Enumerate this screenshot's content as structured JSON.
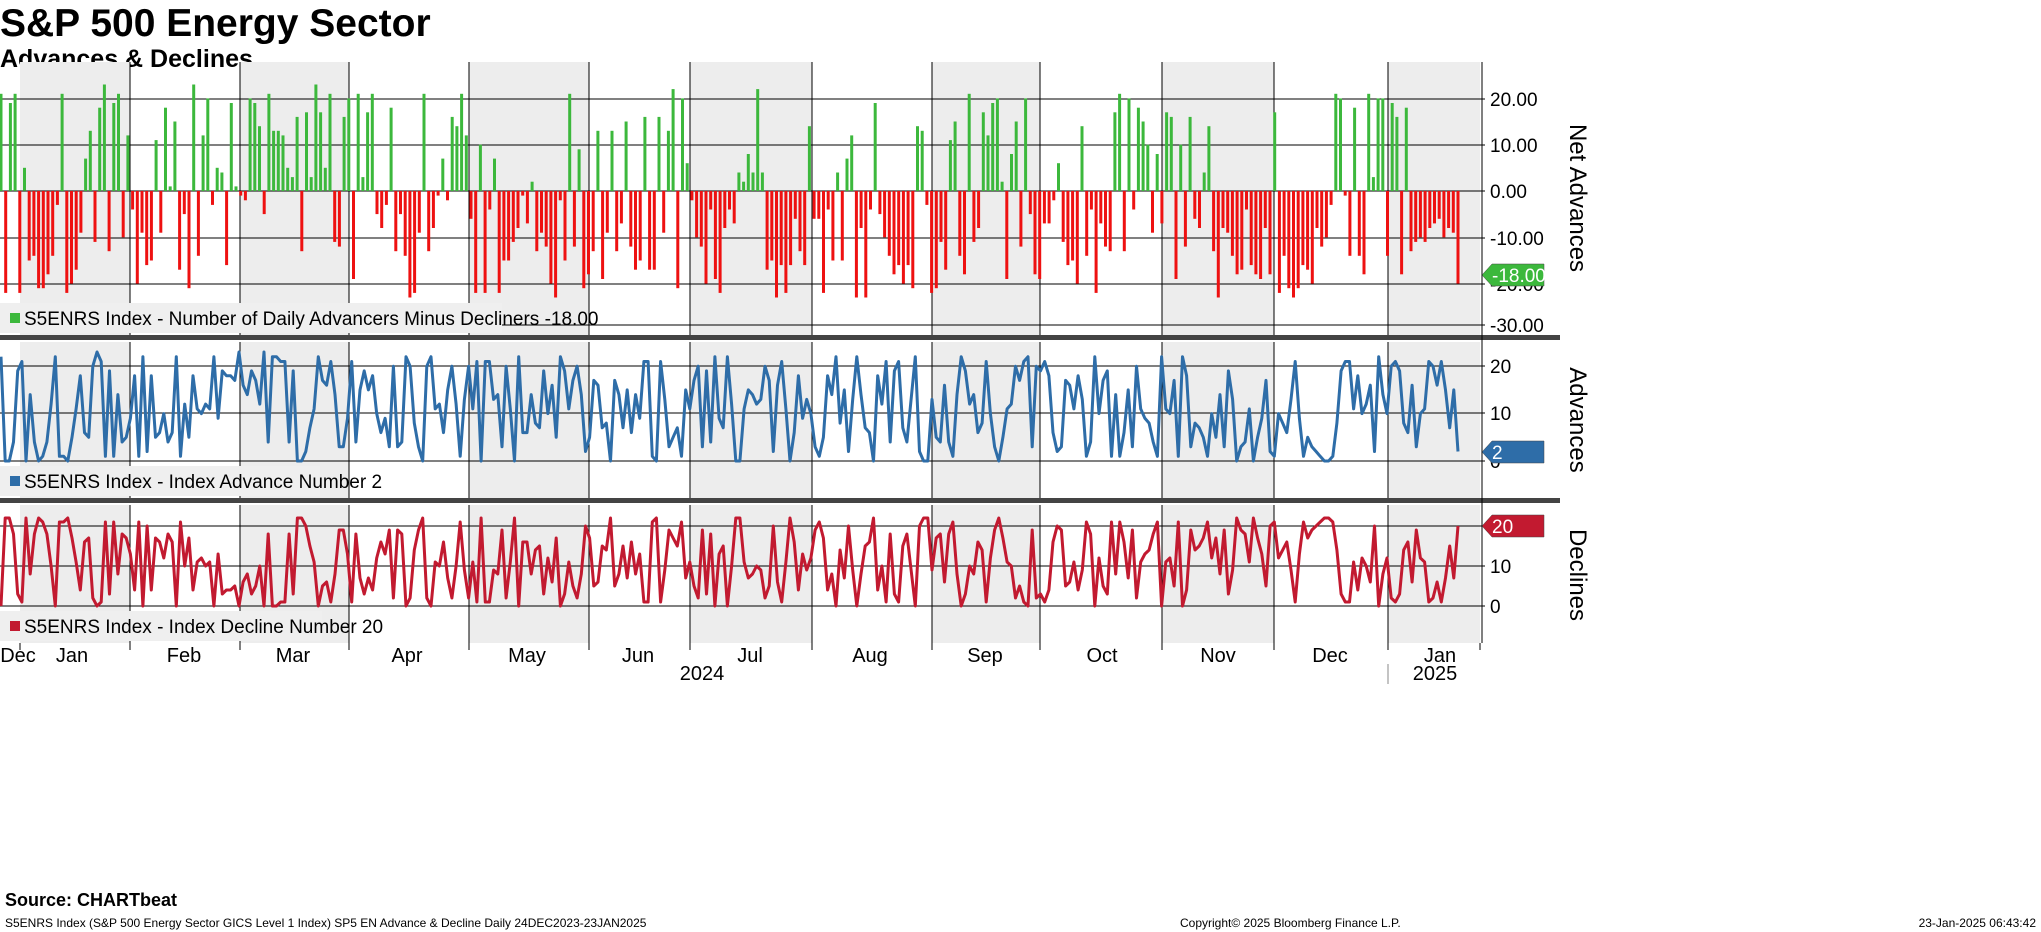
{
  "title": "S&P 500 Energy Sector",
  "subtitle": "Advances & Declines",
  "source": "Source: CHARTbeat",
  "footer": {
    "description": "S5ENRS Index (S&P 500 Energy Sector GICS Level 1 Index) SP5 EN Advance & Decline  Daily 24DEC2023-23JAN2025",
    "copyright": "Copyright© 2025 Bloomberg Finance L.P.",
    "timestamp": "23-Jan-2025 06:43:42"
  },
  "x_axis": {
    "months": [
      "Dec",
      "Jan",
      "Feb",
      "Mar",
      "Apr",
      "May",
      "Jun",
      "Jul",
      "Aug",
      "Sep",
      "Oct",
      "Nov",
      "Dec",
      "Jan"
    ],
    "years": [
      "2024",
      "2025"
    ]
  },
  "colors": {
    "positive": "#3cb83c",
    "negative": "#ee1111",
    "advances": "#2e6da8",
    "declines": "#c21a30",
    "grid": "#000000"
  },
  "chart_data": [
    {
      "type": "bar",
      "title": "Net Advances",
      "ylabel": "Net Advances",
      "legend": "S5ENRS Index - Number of Daily Advancers Minus Decliners -18.00",
      "last_value_label": "-18.00",
      "ylim": [
        -30,
        28
      ],
      "ticks": [
        "20.00",
        "10.00",
        "0.00",
        "-10.00",
        "-20.00",
        "-30.00"
      ],
      "values": [
        21,
        -22,
        19,
        21,
        -22,
        5,
        -15,
        -14,
        -21,
        -21,
        -18,
        -14,
        -3,
        21,
        -22,
        -20,
        -17,
        -9,
        7,
        13,
        -11,
        18,
        23,
        -13,
        19,
        21,
        -10,
        12,
        -4,
        -20,
        -9,
        -16,
        -15,
        11,
        -9,
        18,
        1,
        15,
        -17,
        -5,
        -21,
        23,
        -14,
        12,
        20,
        -3,
        5,
        4,
        -16,
        19,
        1,
        -1,
        -2,
        20,
        19,
        14,
        -5,
        21,
        13,
        13,
        12,
        5,
        3,
        16,
        -13,
        17,
        3,
        23,
        17,
        5,
        21,
        -11,
        -12,
        16,
        20,
        -19,
        21,
        3,
        17,
        21,
        -5,
        -8,
        -3,
        18,
        -13,
        -5,
        -14,
        -23,
        -22,
        -9,
        21,
        -13,
        -8,
        -1,
        7,
        -2,
        16,
        14,
        21,
        12,
        -6,
        -22,
        10,
        -22,
        -4,
        7,
        -22,
        -15,
        -15,
        -11,
        -8,
        -1,
        -7,
        2,
        -13,
        -9,
        -12,
        -20,
        -23,
        -2,
        -15,
        21,
        -12,
        9,
        -21,
        -18,
        -13,
        13,
        -19,
        -9,
        13,
        -13,
        -7,
        15,
        -12,
        -17,
        -15,
        16,
        -17,
        -17,
        16,
        -9,
        13,
        22,
        -21,
        20,
        6,
        -2,
        -10,
        -12,
        -20,
        -4,
        -19,
        -22,
        -8,
        -4,
        -7,
        4,
        2,
        8,
        4,
        22,
        4,
        -17,
        -15,
        -23,
        -16,
        -22,
        -16,
        -6,
        -13,
        -16,
        14,
        -6,
        -6,
        -22,
        -4,
        -15,
        4,
        -15,
        7,
        12,
        -23,
        -8,
        -23,
        -4,
        19,
        -5,
        -10,
        -14,
        -18,
        -16,
        -20,
        -16,
        -21,
        14,
        13,
        -3,
        -22,
        -21,
        -11,
        -17,
        11,
        15,
        -14,
        -18,
        21,
        -11,
        -8,
        17,
        12,
        19,
        20,
        2,
        -19,
        8,
        15,
        -12,
        20,
        -5,
        -18,
        -19,
        -7,
        -7,
        -2,
        6,
        -11,
        -16,
        -15,
        -20,
        14,
        -14,
        -4,
        -22,
        -7,
        -12,
        -13,
        17,
        21,
        -13,
        20,
        -4,
        18,
        15,
        10,
        -9,
        8,
        -7,
        17,
        16,
        -19,
        10,
        -12,
        16,
        -6,
        -8,
        4,
        14,
        -13,
        -23,
        -8,
        -9,
        -14,
        -18,
        -17,
        -4,
        -16,
        -18,
        -19,
        -8,
        -18,
        17,
        -22,
        -14,
        -21,
        -23,
        -21,
        -16,
        -17,
        -20,
        -8,
        -12,
        -10,
        -3,
        21,
        20,
        -1,
        -14,
        18,
        -14,
        -18,
        21,
        3,
        20,
        20,
        -14,
        19,
        16,
        -18,
        18,
        -13,
        -11,
        -10,
        -11,
        -8,
        -7,
        -6,
        -10,
        -8,
        -9,
        -20
      ],
      "last_value": -18
    },
    {
      "type": "line",
      "title": "Advances",
      "ylabel": "Advances",
      "legend": "S5ENRS Index - Index Advance Number 2",
      "last_value_label": "2",
      "ylim": [
        -8,
        25
      ],
      "ticks": [
        "20",
        "10",
        "0"
      ],
      "values": [
        22,
        0,
        0,
        4,
        19,
        21,
        0,
        14,
        4,
        0,
        1,
        4,
        12,
        22,
        1,
        1,
        0,
        5,
        11,
        18,
        6,
        5,
        20,
        23,
        21,
        1,
        19,
        1,
        14,
        4,
        5,
        9,
        18,
        1,
        22,
        2,
        18,
        5,
        6,
        10,
        4,
        6,
        22,
        1,
        12,
        5,
        18,
        11,
        10,
        12,
        11,
        22,
        9,
        19,
        18,
        18,
        17,
        23,
        16,
        14,
        19,
        17,
        12,
        23,
        4,
        22,
        22,
        21,
        21,
        4,
        19,
        0,
        0,
        2,
        7,
        11,
        22,
        17,
        16,
        21,
        14,
        3,
        3,
        9,
        21,
        4,
        15,
        19,
        15,
        18,
        10,
        6,
        9,
        3,
        20,
        3,
        4,
        22,
        20,
        8,
        3,
        0,
        20,
        22,
        11,
        12,
        6,
        15,
        20,
        12,
        1,
        13,
        20,
        11,
        21,
        0,
        21,
        21,
        13,
        14,
        3,
        20,
        11,
        0,
        22,
        6,
        6,
        14,
        8,
        7,
        19,
        10,
        16,
        5,
        22,
        19,
        11,
        17,
        20,
        14,
        2,
        5,
        17,
        16,
        7,
        8,
        0,
        17,
        14,
        7,
        15,
        6,
        14,
        9,
        21,
        21,
        1,
        0,
        21,
        13,
        3,
        5,
        7,
        1,
        15,
        11,
        17,
        20,
        3,
        19,
        4,
        22,
        9,
        7,
        22,
        12,
        0,
        0,
        11,
        15,
        14,
        12,
        13,
        20,
        17,
        2,
        16,
        21,
        11,
        0,
        6,
        18,
        9,
        13,
        10,
        3,
        1,
        5,
        18,
        14,
        22,
        8,
        15,
        2,
        13,
        22,
        14,
        7,
        6,
        0,
        18,
        12,
        21,
        4,
        19,
        21,
        7,
        4,
        13,
        22,
        2,
        0,
        0,
        13,
        5,
        4,
        16,
        4,
        1,
        14,
        22,
        19,
        12,
        14,
        6,
        8,
        21,
        10,
        3,
        0,
        5,
        11,
        12,
        20,
        17,
        21,
        22,
        3,
        20,
        19,
        21,
        18,
        6,
        2,
        3,
        17,
        16,
        11,
        18,
        13,
        1,
        4,
        22,
        10,
        17,
        19,
        1,
        14,
        1,
        6,
        15,
        3,
        20,
        11,
        9,
        8,
        4,
        1,
        22,
        11,
        10,
        17,
        1,
        22,
        18,
        3,
        8,
        7,
        5,
        1,
        10,
        5,
        14,
        3,
        19,
        13,
        0,
        3,
        4,
        11,
        0,
        5,
        9,
        17,
        2,
        1,
        10,
        8,
        6,
        13,
        21,
        9,
        1,
        5,
        3,
        2,
        1,
        0,
        0,
        1,
        8,
        19,
        21,
        21,
        11,
        18,
        10,
        12,
        16,
        2,
        22,
        14,
        10,
        20,
        21,
        19,
        8,
        6,
        16,
        3,
        10,
        11,
        21,
        20,
        16,
        21,
        15,
        7,
        15,
        2
      ]
    },
    {
      "type": "line",
      "title": "Declines",
      "ylabel": "Declines",
      "legend": "S5ENRS Index - Index Decline Number 20",
      "last_value_label": "20",
      "ylim": [
        -8,
        26
      ],
      "ticks": [
        "20",
        "10",
        "0"
      ],
      "values": [
        0,
        22,
        22,
        18,
        3,
        1,
        22,
        8,
        18,
        22,
        21,
        18,
        10,
        0,
        21,
        21,
        22,
        17,
        11,
        4,
        16,
        17,
        2,
        0,
        1,
        21,
        3,
        21,
        8,
        18,
        17,
        13,
        4,
        21,
        0,
        20,
        4,
        17,
        16,
        12,
        18,
        16,
        0,
        21,
        10,
        17,
        4,
        11,
        12,
        10,
        11,
        0,
        13,
        3,
        4,
        4,
        5,
        0,
        6,
        8,
        3,
        5,
        10,
        0,
        18,
        0,
        0,
        1,
        1,
        18,
        3,
        22,
        22,
        20,
        15,
        11,
        0,
        5,
        6,
        1,
        8,
        19,
        19,
        13,
        1,
        18,
        7,
        3,
        7,
        4,
        12,
        16,
        13,
        19,
        2,
        19,
        18,
        0,
        2,
        14,
        19,
        22,
        2,
        0,
        11,
        10,
        16,
        7,
        2,
        10,
        21,
        9,
        2,
        11,
        1,
        22,
        1,
        1,
        9,
        8,
        19,
        2,
        11,
        22,
        0,
        16,
        16,
        8,
        14,
        15,
        3,
        12,
        6,
        17,
        0,
        3,
        11,
        5,
        2,
        8,
        20,
        17,
        5,
        6,
        15,
        14,
        22,
        5,
        8,
        15,
        7,
        16,
        8,
        13,
        1,
        1,
        21,
        22,
        1,
        9,
        19,
        17,
        15,
        21,
        7,
        11,
        5,
        2,
        19,
        3,
        18,
        0,
        13,
        15,
        0,
        10,
        22,
        22,
        11,
        7,
        8,
        10,
        9,
        2,
        5,
        20,
        6,
        1,
        11,
        22,
        16,
        4,
        13,
        9,
        12,
        19,
        21,
        17,
        4,
        8,
        0,
        14,
        7,
        20,
        9,
        0,
        8,
        15,
        16,
        22,
        4,
        10,
        1,
        18,
        3,
        1,
        15,
        18,
        9,
        0,
        20,
        22,
        22,
        9,
        17,
        18,
        6,
        18,
        21,
        8,
        0,
        3,
        10,
        8,
        16,
        14,
        1,
        12,
        19,
        22,
        17,
        11,
        10,
        2,
        5,
        1,
        0,
        19,
        2,
        3,
        1,
        4,
        16,
        20,
        19,
        5,
        6,
        11,
        4,
        9,
        21,
        18,
        0,
        12,
        5,
        3,
        21,
        8,
        21,
        16,
        7,
        19,
        2,
        11,
        13,
        14,
        18,
        21,
        0,
        11,
        12,
        5,
        21,
        0,
        4,
        19,
        14,
        15,
        17,
        21,
        12,
        17,
        8,
        19,
        3,
        9,
        22,
        19,
        18,
        11,
        22,
        17,
        13,
        5,
        20,
        21,
        12,
        14,
        16,
        9,
        1,
        13,
        21,
        17,
        19,
        20,
        21,
        22,
        22,
        21,
        14,
        3,
        1,
        1,
        11,
        4,
        12,
        10,
        6,
        20,
        0,
        8,
        12,
        2,
        1,
        3,
        14,
        16,
        6,
        19,
        12,
        11,
        1,
        2,
        6,
        1,
        7,
        15,
        7,
        20
      ]
    }
  ]
}
